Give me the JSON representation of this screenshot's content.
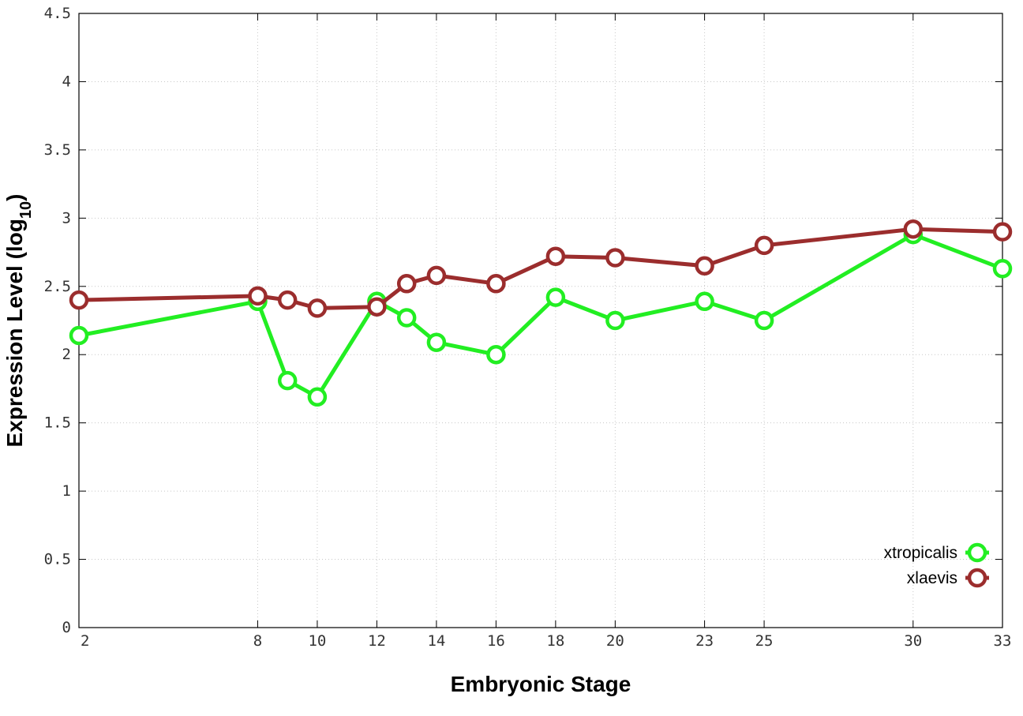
{
  "chart_data": {
    "type": "line",
    "xlabel": "Embryonic Stage",
    "ylabel_main": "Expression Level (log",
    "ylabel_sub": "10",
    "ylabel_close": ")",
    "ylim": [
      0,
      4.5
    ],
    "xlim": [
      2,
      33
    ],
    "y_ticks": [
      "0",
      "0.5",
      "1",
      "1.5",
      "2",
      "2.5",
      "3",
      "3.5",
      "4",
      "4.5"
    ],
    "x_ticks": [
      "2",
      "8",
      "10",
      "12",
      "14",
      "16",
      "18",
      "20",
      "23",
      "25",
      "30",
      "33"
    ],
    "grid": true,
    "legend_position": "bottom-right",
    "x": [
      2,
      8,
      9,
      10,
      12,
      13,
      14,
      16,
      18,
      20,
      23,
      25,
      30,
      33
    ],
    "series": [
      {
        "name": "xtropicalis",
        "color": "#22ee22",
        "values": [
          2.14,
          2.39,
          1.81,
          1.69,
          2.39,
          2.27,
          2.09,
          2.0,
          2.42,
          2.25,
          2.39,
          2.25,
          2.88,
          2.63
        ]
      },
      {
        "name": "xlaevis",
        "color": "#9b2d2d",
        "values": [
          2.4,
          2.43,
          2.4,
          2.34,
          2.35,
          2.52,
          2.58,
          2.52,
          2.72,
          2.71,
          2.65,
          2.8,
          2.92,
          2.9
        ]
      }
    ]
  }
}
